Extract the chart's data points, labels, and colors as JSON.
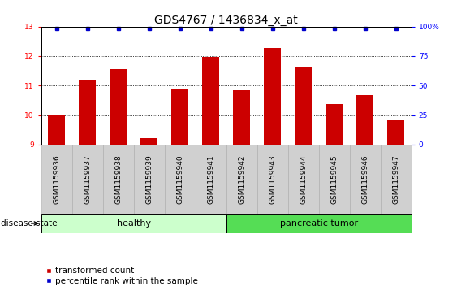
{
  "title": "GDS4767 / 1436834_x_at",
  "samples": [
    "GSM1159936",
    "GSM1159937",
    "GSM1159938",
    "GSM1159939",
    "GSM1159940",
    "GSM1159941",
    "GSM1159942",
    "GSM1159943",
    "GSM1159944",
    "GSM1159945",
    "GSM1159946",
    "GSM1159947"
  ],
  "transformed_count": [
    9.98,
    11.2,
    11.57,
    9.22,
    10.87,
    11.97,
    10.85,
    12.27,
    11.65,
    10.38,
    10.67,
    9.82
  ],
  "bar_color": "#cc0000",
  "percentile_color": "#0000cc",
  "ylim_left": [
    9,
    13
  ],
  "ylim_right": [
    0,
    100
  ],
  "yticks_left": [
    9,
    10,
    11,
    12,
    13
  ],
  "yticks_right": [
    0,
    25,
    50,
    75,
    100
  ],
  "right_tick_labels": [
    "0",
    "25",
    "50",
    "75",
    "100%"
  ],
  "group_healthy_label": "healthy",
  "group_healthy_n": 6,
  "group_tumor_label": "pancreatic tumor",
  "group_tumor_n": 6,
  "group_healthy_color": "#ccffcc",
  "group_tumor_color": "#55dd55",
  "group_label_text": "disease state",
  "bar_width": 0.55,
  "title_fontsize": 10,
  "tick_fontsize": 6.5,
  "label_fontsize": 8,
  "legend_fontsize": 7.5
}
